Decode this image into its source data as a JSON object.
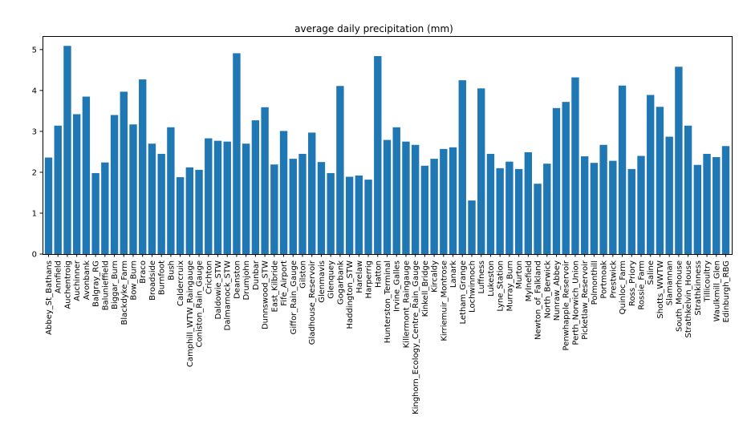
{
  "chart_data": {
    "type": "bar",
    "title": "average daily precipitation (mm)",
    "xlabel": "",
    "ylabel": "",
    "ylim": [
      0,
      5.33
    ],
    "yticks": [
      0,
      1,
      2,
      3,
      4,
      5
    ],
    "grid": false,
    "legend": "none",
    "bar_color": "#1f77b4",
    "categories": [
      "Abbey_St_Bathans",
      "Annfield",
      "Auchentroig",
      "Auchinner",
      "Avonbank",
      "Balgray_RG",
      "Balunieffield",
      "Biggar_Burn",
      "Blackdyke_Farm",
      "Bow_Burn",
      "Braco",
      "Broadside",
      "Burnfoot",
      "Bush",
      "Caldercruix",
      "Camphill_WTW_Raingauge",
      "Coniston_Rain_Gauge",
      "Crichton",
      "Daldowie_STW",
      "Dalmarnock_STW",
      "Deanston",
      "Drumjohn",
      "Dunbar",
      "Dunnswood_STW",
      "East_Kilbride",
      "Fife_Airport",
      "Giffor_Rain_Gauge",
      "Gilston",
      "Gladhouse_Reservoir",
      "Glenmavis",
      "Glenquey",
      "Gogarbank",
      "Haddington_STW",
      "Harelaw",
      "Harperrig",
      "Hatton",
      "Hunterston_Terminal",
      "Irvine_Galles",
      "Killermont_Raingauge",
      "Kinghorn_Ecology_Centre_Rain_Gauge",
      "Kinkell_Bridge",
      "Kircaldy",
      "Kirriemuir_Montrose",
      "Lanark",
      "Letham_Grange",
      "Lochwinnoch",
      "Luffness",
      "Lukeston",
      "Lyne_Station",
      "Murray_Burn",
      "Murton",
      "Mylnefield",
      "Newton_of_Falkland",
      "North_Berwick",
      "Nunraw_Abbey",
      "Penwhapple_Reservoir",
      "Perth_Norwich_Union",
      "Picketlaw_Reservoir",
      "Polmonthill",
      "Portmoak",
      "Prestwick",
      "Quinloc_Farm",
      "Ross_Priory",
      "Rossie_Farm",
      "Saline",
      "Shotts_WWTW",
      "Slamannan",
      "South_Moorhouse",
      "Strathkelvin_House",
      "Strathkinness",
      "Tillicoultry",
      "Waulkmill_Glen",
      "Edinburgh_RBG"
    ],
    "values": [
      2.36,
      3.14,
      5.09,
      3.42,
      3.85,
      1.98,
      2.24,
      3.4,
      3.97,
      3.17,
      4.27,
      2.7,
      2.45,
      3.1,
      1.88,
      2.12,
      2.06,
      2.83,
      2.77,
      2.75,
      4.91,
      2.7,
      3.27,
      3.59,
      2.19,
      3.01,
      2.33,
      2.45,
      2.97,
      2.25,
      1.98,
      4.11,
      1.89,
      1.92,
      1.82,
      4.84,
      2.79,
      3.1,
      2.75,
      2.67,
      2.16,
      2.33,
      2.57,
      2.61,
      4.25,
      1.31,
      4.05,
      2.45,
      2.1,
      2.26,
      2.08,
      2.49,
      1.72,
      2.21,
      3.57,
      3.72,
      4.32,
      2.39,
      2.23,
      2.67,
      2.28,
      4.12,
      2.08,
      2.4,
      3.89,
      3.6,
      2.87,
      4.58,
      3.14,
      2.18,
      2.45,
      2.37,
      2.64
    ]
  }
}
